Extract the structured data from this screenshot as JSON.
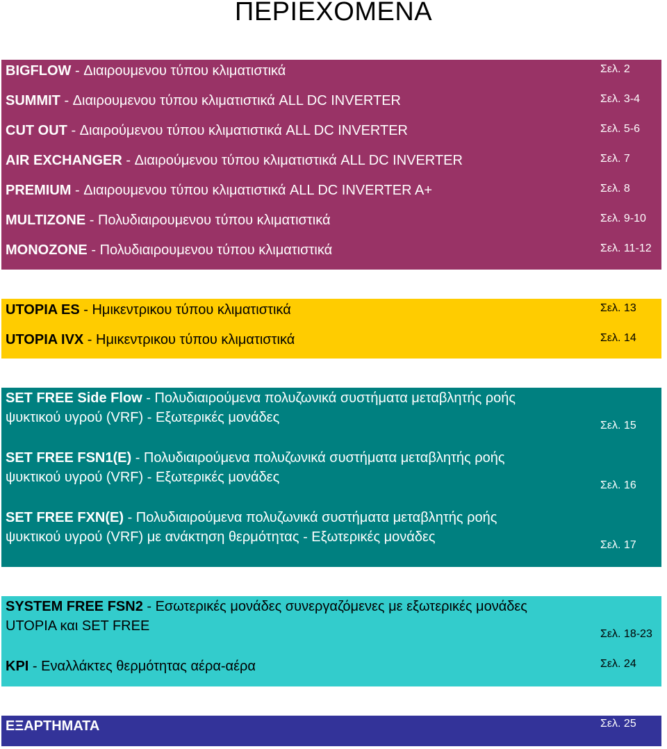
{
  "title": "ΠΕΡΙΕΧΟΜΕΝΑ",
  "sections": [
    {
      "entries": [
        {
          "name": "BIGFLOW",
          "desc": "Διαιρουμενου τύπου κλιματιστικά",
          "page": "Σελ. 2"
        },
        {
          "name": "SUMMIT",
          "desc": "Διαιρουμενου τύπου κλιματιστικά ALL DC INVERTER",
          "page": "Σελ. 3-4"
        },
        {
          "name": "CUT OUT",
          "desc": "Διαιρούμενου τύπου κλιματιστικά ALL DC INVERTER",
          "page": "Σελ. 5-6"
        },
        {
          "name": "AIR EXCHANGER",
          "desc": "Διαιρούμενου τύπου κλιματιστικά ALL DC INVERTER",
          "page": "Σελ. 7"
        },
        {
          "name": "PREMIUM",
          "desc": "Διαιρουμενου τύπου κλιματιστικά ALL DC INVERTER A+",
          "page": "Σελ. 8"
        },
        {
          "name": "MULTIZONE",
          "desc": "Πολυδιαιρουμενου τύπου κλιματιστικά",
          "page": "Σελ. 9-10"
        },
        {
          "name": "MONOZONE",
          "desc": "Πολυδιαιρουμενου τύπου κλιματιστικά",
          "page": "Σελ. 11-12"
        }
      ]
    },
    {
      "entries": [
        {
          "name": "UTOPIA ES",
          "desc": "Ημικεντρικου τύπου κλιματιστικά",
          "page": "Σελ. 13"
        },
        {
          "name": "UTOPIA IVX",
          "desc": "Ημικεντρικου τύπου κλιματιστικά",
          "page": "Σελ. 14"
        }
      ]
    },
    {
      "entries": [
        {
          "name": "SET FREE Side Flow",
          "desc": "Πολυδιαιρούμενα πολυζωνικά συστήματα μεταβλητής ροής ψυκτικού υγρού (VRF) - Εξωτερικές μονάδες",
          "page": "Σελ. 15"
        },
        {
          "name": "SET FREE FSN1(E)",
          "desc": "Πολυδιαιρούμενα πολυζωνικά συστήματα μεταβλητής ροής ψυκτικού υγρού (VRF) - Εξωτερικές μονάδες",
          "page": "Σελ. 16"
        },
        {
          "name": "SET FREE FXN(E)",
          "desc": "Πολυδιαιρούμενα πολυζωνικά συστήματα μεταβλητής ροής ψυκτικού υγρού (VRF) με ανάκτηση θερμότητας - Εξωτερικές μονάδες",
          "page": "Σελ. 17"
        }
      ]
    },
    {
      "entries": [
        {
          "name": "SYSTEM FREE FSN2",
          "desc": "Εσωτερικές μονάδες συνεργαζόμενες με εξωτερικές μονάδες UTOPIA και SET FREE",
          "page": "Σελ. 18-23"
        },
        {
          "name": "KPI",
          "desc": "Εναλλάκτες θερμότητας αέρα-αέρα",
          "page": "Σελ. 24"
        }
      ]
    },
    {
      "entries": [
        {
          "name": "ΕΞΑΡΤΗΜΑΤΑ",
          "desc": "",
          "page": "Σελ. 25"
        }
      ]
    }
  ],
  "colors": {
    "section_1": "#993366",
    "section_2": "#ffcc00",
    "section_3": "#008080",
    "section_4": "#33cccc",
    "section_5": "#333399"
  }
}
